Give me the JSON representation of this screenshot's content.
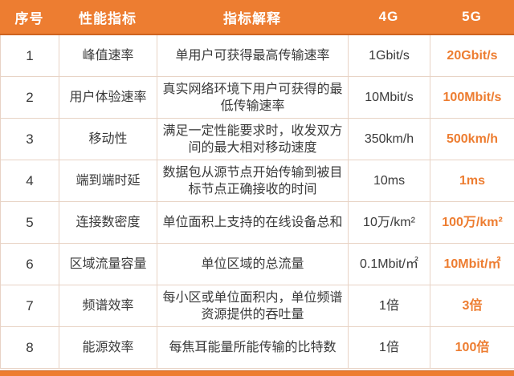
{
  "colors": {
    "accent": "#ED7D31",
    "accent_dark": "#CE6420",
    "grid_line": "#E8D3C5",
    "header_text": "#FFFFFF",
    "body_text": "#3A3A3A"
  },
  "chart_data": {
    "type": "table",
    "columns": [
      "序号",
      "性能指标",
      "指标解释",
      "4G",
      "5G"
    ],
    "rows": [
      {
        "no": "1",
        "indicator": "峰值速率",
        "explanation": "单用户可获得最高传输速率",
        "g4": "1Gbit/s",
        "g5": "20Gbit/s"
      },
      {
        "no": "2",
        "indicator": "用户体验速率",
        "explanation": "真实网络环境下用户可获得的最低传输速率",
        "g4": "10Mbit/s",
        "g5": "100Mbit/s"
      },
      {
        "no": "3",
        "indicator": "移动性",
        "explanation": "满足一定性能要求时，收发双方间的最大相对移动速度",
        "g4": "350km/h",
        "g5": "500km/h"
      },
      {
        "no": "4",
        "indicator": "端到端时延",
        "explanation": "数据包从源节点开始传输到被目标节点正确接收的时间",
        "g4": "10ms",
        "g5": "1ms"
      },
      {
        "no": "5",
        "indicator": "连接数密度",
        "explanation": "单位面积上支持的在线设备总和",
        "g4": "10万/km²",
        "g5": "100万/km²"
      },
      {
        "no": "6",
        "indicator": "区域流量容量",
        "explanation": "单位区域的总流量",
        "g4": "0.1Mbit/㎡",
        "g5": "10Mbit/㎡"
      },
      {
        "no": "7",
        "indicator": "频谱效率",
        "explanation": "每小区或单位面积内，单位频谱资源提供的吞吐量",
        "g4": "1倍",
        "g5": "3倍"
      },
      {
        "no": "8",
        "indicator": "能源效率",
        "explanation": "每焦耳能量所能传输的比特数",
        "g4": "1倍",
        "g5": "100倍"
      }
    ]
  }
}
